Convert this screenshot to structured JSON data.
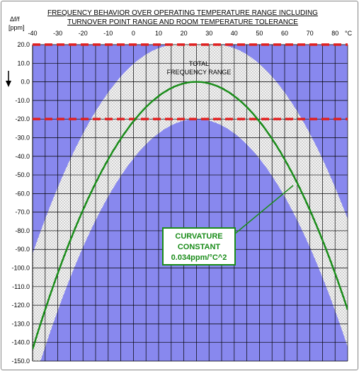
{
  "chart_data": {
    "type": "line",
    "title_line1": "FREQUENCY BEHAVIOR OVER OPERATING TEMPERATURE RANGE INCLUDING",
    "title_line2": "TURNOVER POINT RANGE AND ROOM TEMPERATURE TOLERANCE",
    "ylabel_line1": "Δf/f",
    "ylabel_line2": "[ppm]",
    "x_unit": "°C",
    "xlim": [
      -40,
      85
    ],
    "ylim": [
      -150,
      20
    ],
    "x_ticks": [
      -40,
      -30,
      -20,
      -10,
      0,
      10,
      20,
      30,
      40,
      50,
      60,
      70,
      80
    ],
    "x_tick_labels": [
      "-40",
      "-30",
      "-20",
      "-10",
      "0",
      "10",
      "20",
      "30",
      "40",
      "50",
      "60",
      "70",
      "80"
    ],
    "y_ticks": [
      20,
      10,
      0,
      -10,
      -20,
      -30,
      -40,
      -50,
      -60,
      -70,
      -80,
      -90,
      -100,
      -110,
      -120,
      -130,
      -140,
      -150
    ],
    "y_tick_labels": [
      "20.0",
      "10.0",
      "0.0",
      "-10.0",
      "-20.0",
      "-30.0",
      "-40.0",
      "-50.0",
      "-60.0",
      "-70.0",
      "-80.0",
      "-90.0",
      "-100.0",
      "-110.0",
      "-120.0",
      "-130.0",
      "-140.0",
      "-150.0"
    ],
    "grid": true,
    "nominal_curve": {
      "curvature_constant": 0.034,
      "turnover_temperature": 25,
      "peak_value": 0,
      "color": "#1a8c1a"
    },
    "band": {
      "upper_peak": 20,
      "lower_peak": -20,
      "upper_center_start": 17.5,
      "upper_center_end": 32.5,
      "lower_center_start": 25,
      "lower_center_end": 25,
      "fill": "#f2f2f2"
    },
    "tolerance_lines": [
      20,
      -20
    ],
    "tolerance_line_color": "#e02020",
    "background_color": "#8888ee",
    "annotation_total_line1": "TOTAL",
    "annotation_total_line2": "FREQUENCY RANGE",
    "curvature_box": {
      "line1": "CURVATURE",
      "line2": "CONSTANT",
      "line3": "0.034ppm/°C^2",
      "color": "#1a8c1a"
    }
  }
}
